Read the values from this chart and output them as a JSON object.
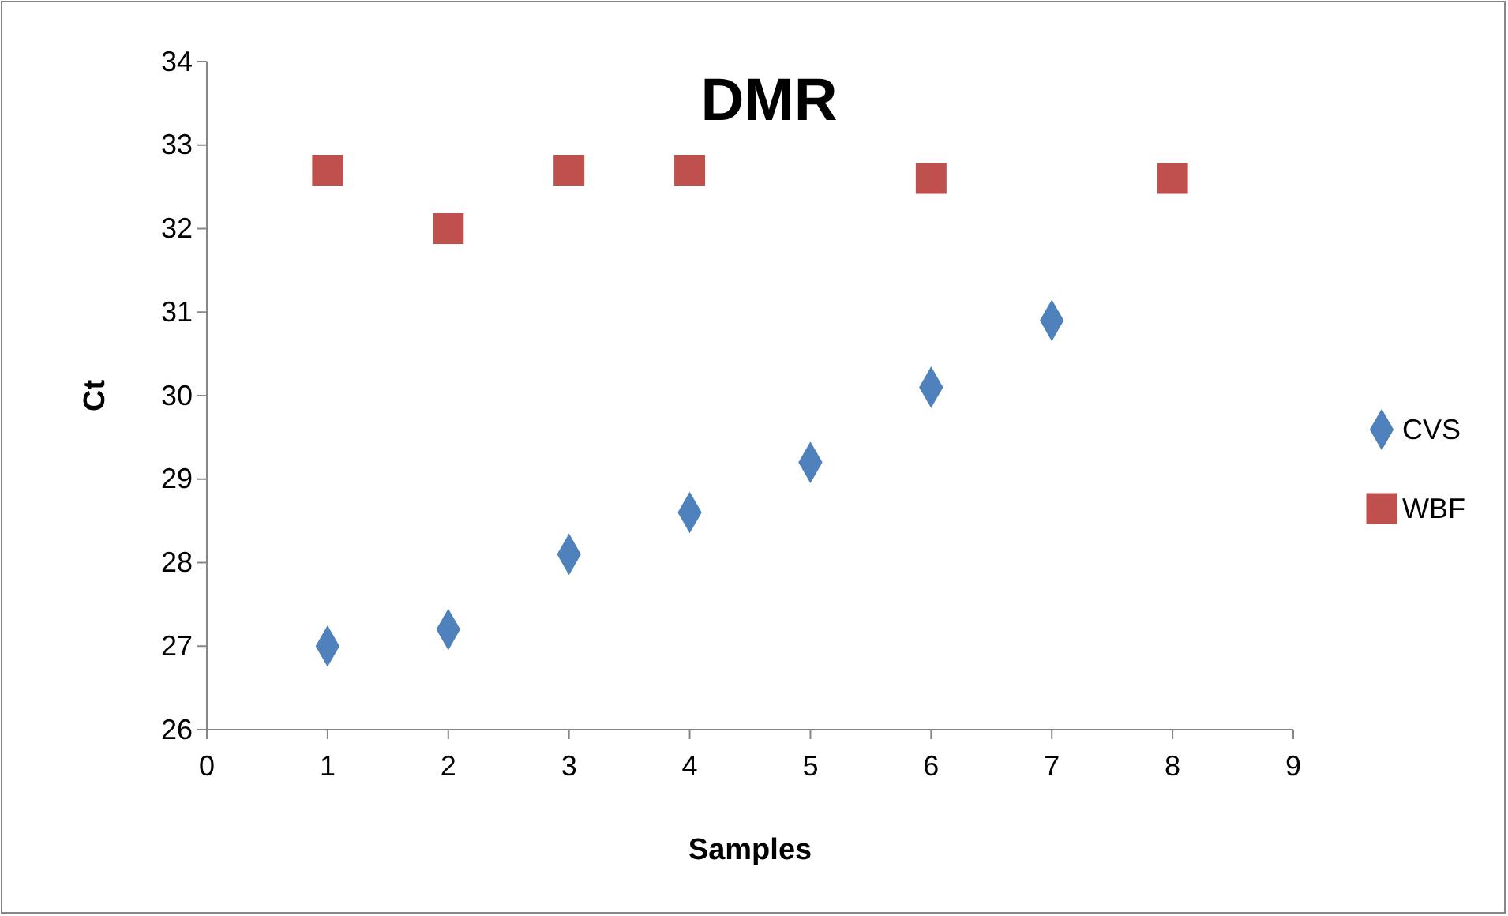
{
  "chart_data": {
    "type": "scatter",
    "title": "DMR",
    "xlabel": "Samples",
    "ylabel": "Ct",
    "xlim": [
      0,
      9
    ],
    "xticks": [
      0,
      1,
      2,
      3,
      4,
      5,
      6,
      7,
      8,
      9
    ],
    "ylim": [
      26,
      34
    ],
    "yticks": [
      26,
      27,
      28,
      29,
      30,
      31,
      32,
      33,
      34
    ],
    "grid": false,
    "legend": "right",
    "series": [
      {
        "name": "CVS",
        "color": "#4f81bd",
        "marker": "diamond",
        "x": [
          1,
          2,
          3,
          4,
          5,
          6,
          7
        ],
        "values": [
          27.0,
          27.2,
          28.1,
          28.6,
          29.2,
          30.1,
          30.9
        ]
      },
      {
        "name": "WBF",
        "color": "#c0504d",
        "marker": "square",
        "x": [
          1,
          2,
          3,
          4,
          6,
          8
        ],
        "values": [
          32.7,
          32.0,
          32.7,
          32.7,
          32.6,
          32.6
        ]
      }
    ]
  }
}
